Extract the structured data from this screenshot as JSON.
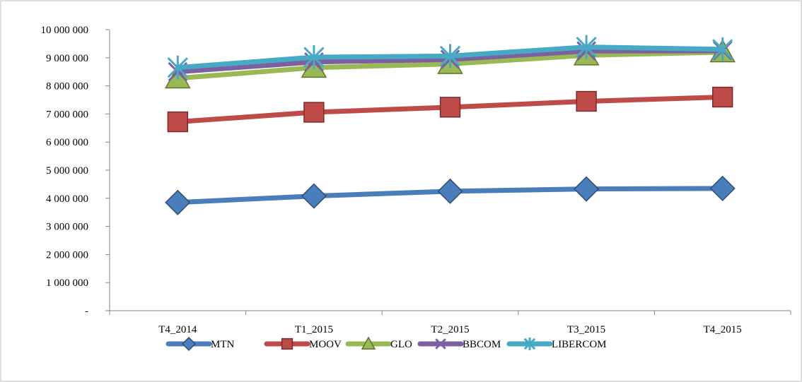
{
  "chart_data": {
    "type": "line",
    "title": "",
    "xlabel": "",
    "ylabel": "",
    "categories": [
      "T4_2014",
      "T1_2015",
      "T2_2015",
      "T3_2015",
      "T4_2015"
    ],
    "ylim": [
      0,
      10000000
    ],
    "ytick_values": [
      0,
      1000000,
      2000000,
      3000000,
      4000000,
      5000000,
      6000000,
      7000000,
      8000000,
      9000000,
      10000000
    ],
    "ytick_labels": [
      "-",
      "1 000 000",
      "2 000 000",
      "3 000 000",
      "4 000 000",
      "5 000 000",
      "6 000 000",
      "7 000 000",
      "8 000 000",
      "9 000 000",
      "10 000 000"
    ],
    "grid": false,
    "legend_position": "bottom",
    "series": [
      {
        "name": "MTN",
        "color": "#4a7ebb",
        "marker": "diamond",
        "values": [
          3850000,
          4080000,
          4250000,
          4330000,
          4350000
        ]
      },
      {
        "name": "MOOV",
        "color": "#be4b48",
        "marker": "square",
        "values": [
          6720000,
          7060000,
          7240000,
          7450000,
          7600000
        ]
      },
      {
        "name": "GLO",
        "color": "#98b954",
        "marker": "triangle",
        "values": [
          8270000,
          8650000,
          8780000,
          9090000,
          9200000
        ]
      },
      {
        "name": "BBCOM",
        "color": "#7d60a0",
        "marker": "x",
        "values": [
          8500000,
          8850000,
          8940000,
          9240000,
          9250000
        ]
      },
      {
        "name": "LIBERCOM",
        "color": "#46aac5",
        "marker": "star",
        "values": [
          8650000,
          9020000,
          9060000,
          9380000,
          9300000
        ]
      }
    ]
  }
}
